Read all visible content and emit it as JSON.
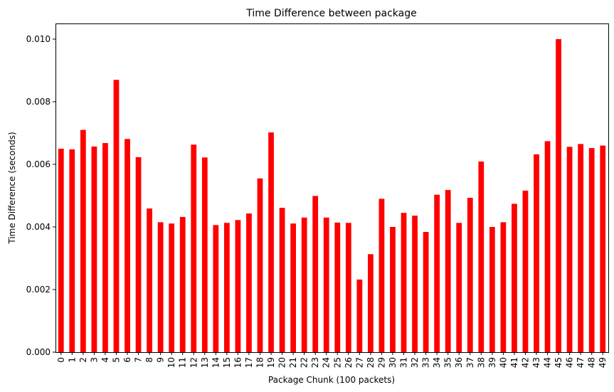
{
  "chart_data": {
    "type": "bar",
    "title": "Time Difference between package",
    "xlabel": "Package Chunk (100 packets)",
    "ylabel": "Time Difference (seconds)",
    "ylim": [
      0,
      0.0105
    ],
    "yticks": [
      0.0,
      0.002,
      0.004,
      0.006,
      0.008,
      0.01
    ],
    "ytick_labels": [
      "0.000",
      "0.002",
      "0.004",
      "0.006",
      "0.008",
      "0.010"
    ],
    "grid": false,
    "legend": "none",
    "bar_color": "#ff0000",
    "categories": [
      "0",
      "1",
      "2",
      "3",
      "4",
      "5",
      "6",
      "7",
      "8",
      "9",
      "10",
      "11",
      "12",
      "13",
      "14",
      "15",
      "16",
      "17",
      "18",
      "19",
      "20",
      "21",
      "22",
      "23",
      "24",
      "25",
      "26",
      "27",
      "28",
      "29",
      "30",
      "31",
      "32",
      "33",
      "34",
      "35",
      "36",
      "37",
      "38",
      "39",
      "40",
      "41",
      "42",
      "43",
      "44",
      "45",
      "46",
      "47",
      "48",
      "49"
    ],
    "values": [
      0.0065,
      0.00648,
      0.0071,
      0.00657,
      0.00668,
      0.0087,
      0.00681,
      0.00623,
      0.00459,
      0.00415,
      0.00411,
      0.00432,
      0.00663,
      0.00622,
      0.00406,
      0.00413,
      0.00422,
      0.00443,
      0.00555,
      0.00702,
      0.00461,
      0.00411,
      0.0043,
      0.00499,
      0.0043,
      0.00414,
      0.00413,
      0.00232,
      0.00313,
      0.0049,
      0.004,
      0.00445,
      0.00436,
      0.00384,
      0.00503,
      0.00518,
      0.00413,
      0.00493,
      0.00609,
      0.004,
      0.00415,
      0.00474,
      0.00516,
      0.00632,
      0.00674,
      0.01,
      0.00656,
      0.00665,
      0.00652,
      0.0066
    ]
  }
}
